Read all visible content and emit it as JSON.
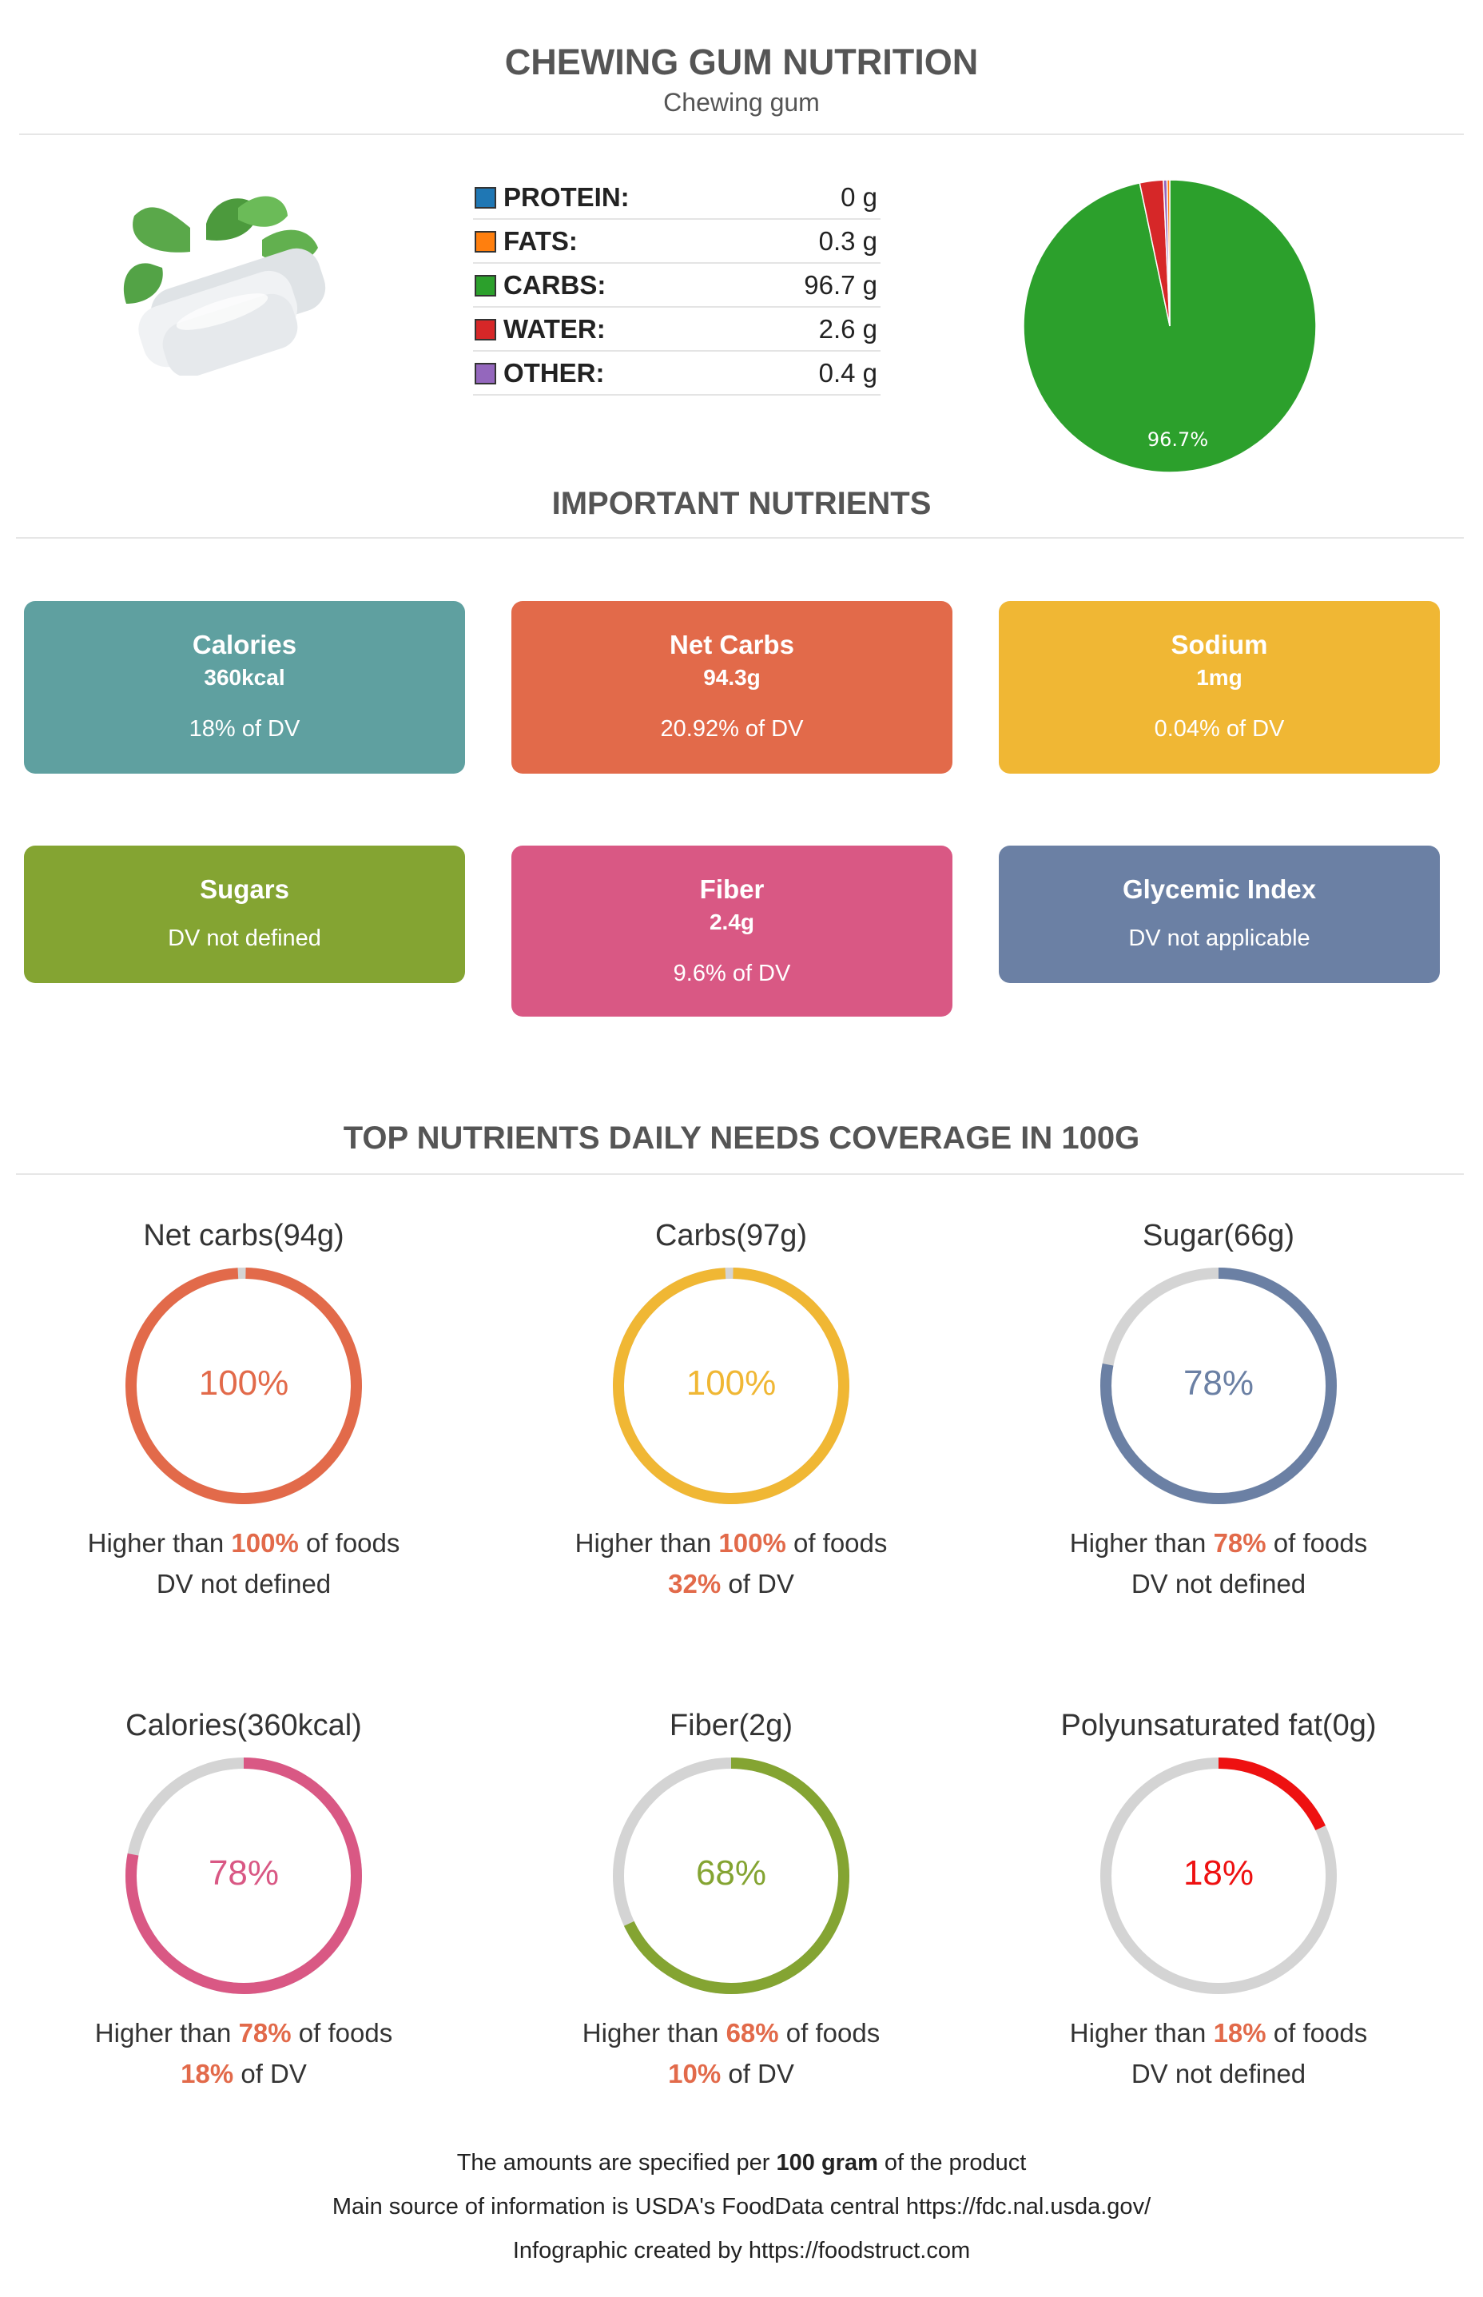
{
  "header": {
    "title": "CHEWING GUM NUTRITION",
    "subtitle": "Chewing gum"
  },
  "macros": [
    {
      "name": "PROTEIN:",
      "value": "0 g",
      "color": "#1f77b4"
    },
    {
      "name": "FATS:",
      "value": "0.3 g",
      "color": "#ff7f0e"
    },
    {
      "name": "CARBS:",
      "value": "96.7 g",
      "color": "#2ca02c"
    },
    {
      "name": "WATER:",
      "value": "2.6 g",
      "color": "#d62728"
    },
    {
      "name": "OTHER:",
      "value": "0.4 g",
      "color": "#9467bd"
    }
  ],
  "chart_data": [
    {
      "type": "pie",
      "categories": [
        "Protein",
        "Fats",
        "Carbs",
        "Water",
        "Other"
      ],
      "values": [
        0,
        0.3,
        96.7,
        2.6,
        0.4
      ],
      "colors": [
        "#1f77b4",
        "#ff7f0e",
        "#2ca02c",
        "#d62728",
        "#9467bd"
      ],
      "slice_label": "96.7%"
    },
    {
      "type": "pie",
      "title": "TOP NUTRIENTS DAILY NEEDS COVERAGE IN 100G",
      "series": [
        {
          "name": "Net carbs(94g)",
          "value": 100,
          "label": "100%",
          "color": "#e26a4a"
        },
        {
          "name": "Carbs(97g)",
          "value": 100,
          "label": "100%",
          "color": "#f0b734"
        },
        {
          "name": "Sugar(66g)",
          "value": 78,
          "label": "78%",
          "color": "#6b80a4"
        },
        {
          "name": "Calories(360kcal)",
          "value": 78,
          "label": "78%",
          "color": "#d95884"
        },
        {
          "name": "Fiber(2g)",
          "value": 68,
          "label": "68%",
          "color": "#84a432"
        },
        {
          "name": "Polyunsaturated fat(0g)",
          "value": 18,
          "label": "18%",
          "color": "#ee1111"
        }
      ]
    }
  ],
  "important": {
    "title": "IMPORTANT NUTRIENTS",
    "cards": [
      {
        "name": "Calories",
        "value": "360kcal",
        "dv": "18% of DV",
        "color": "#5fa0a0"
      },
      {
        "name": "Net Carbs",
        "value": "94.3g",
        "dv": "20.92% of DV",
        "color": "#e26a4a"
      },
      {
        "name": "Sodium",
        "value": "1mg",
        "dv": "0.04% of DV",
        "color": "#f0b734"
      },
      {
        "name": "Sugars",
        "value": "",
        "dv": "DV not defined",
        "color": "#84a432"
      },
      {
        "name": "Fiber",
        "value": "2.4g",
        "dv": "9.6% of DV",
        "color": "#d95884"
      },
      {
        "name": "Glycemic Index",
        "value": "",
        "dv": "DV not applicable",
        "color": "#6b80a4"
      }
    ]
  },
  "coverage": {
    "items": [
      {
        "higher_prefix": "Higher than ",
        "higher_pct": "100%",
        "higher_suffix": " of foods",
        "dv_pct": "",
        "dv_text": "DV not defined"
      },
      {
        "higher_prefix": "Higher than ",
        "higher_pct": "100%",
        "higher_suffix": " of foods",
        "dv_pct": "32%",
        "dv_text": " of DV"
      },
      {
        "higher_prefix": "Higher than ",
        "higher_pct": "78%",
        "higher_suffix": " of foods",
        "dv_pct": "",
        "dv_text": "DV not defined"
      },
      {
        "higher_prefix": "Higher than ",
        "higher_pct": "78%",
        "higher_suffix": " of foods",
        "dv_pct": "18%",
        "dv_text": " of DV"
      },
      {
        "higher_prefix": "Higher than ",
        "higher_pct": "68%",
        "higher_suffix": " of foods",
        "dv_pct": "10%",
        "dv_text": " of DV"
      },
      {
        "higher_prefix": "Higher than ",
        "higher_pct": "18%",
        "higher_suffix": " of foods",
        "dv_pct": "",
        "dv_text": "DV not defined"
      }
    ]
  },
  "footer": {
    "line1_prefix": "The amounts are specified per ",
    "line1_bold": "100 gram",
    "line1_suffix": " of the product",
    "line2": "Main source of information is USDA's FoodData central https://fdc.nal.usda.gov/",
    "line3": "Infographic created by https://foodstruct.com"
  }
}
